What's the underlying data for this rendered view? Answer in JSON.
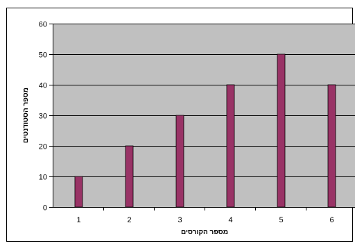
{
  "chart_data": {
    "type": "bar",
    "categories": [
      "1",
      "2",
      "3",
      "4",
      "5",
      "6"
    ],
    "values": [
      10,
      20,
      30,
      40,
      50,
      40
    ],
    "title": "",
    "xlabel": "מספר הקורסים",
    "ylabel": "מספר הסטודנטים",
    "ylim": [
      0,
      60
    ],
    "yticks": [
      "0",
      "10",
      "20",
      "30",
      "40",
      "50",
      "60"
    ],
    "grid": true,
    "legend": "none",
    "colors": {
      "bar": "#993366",
      "plot_background": "#c0c0c0",
      "gridline": "#000000",
      "axis": "#000000",
      "frame": "#000000"
    }
  }
}
